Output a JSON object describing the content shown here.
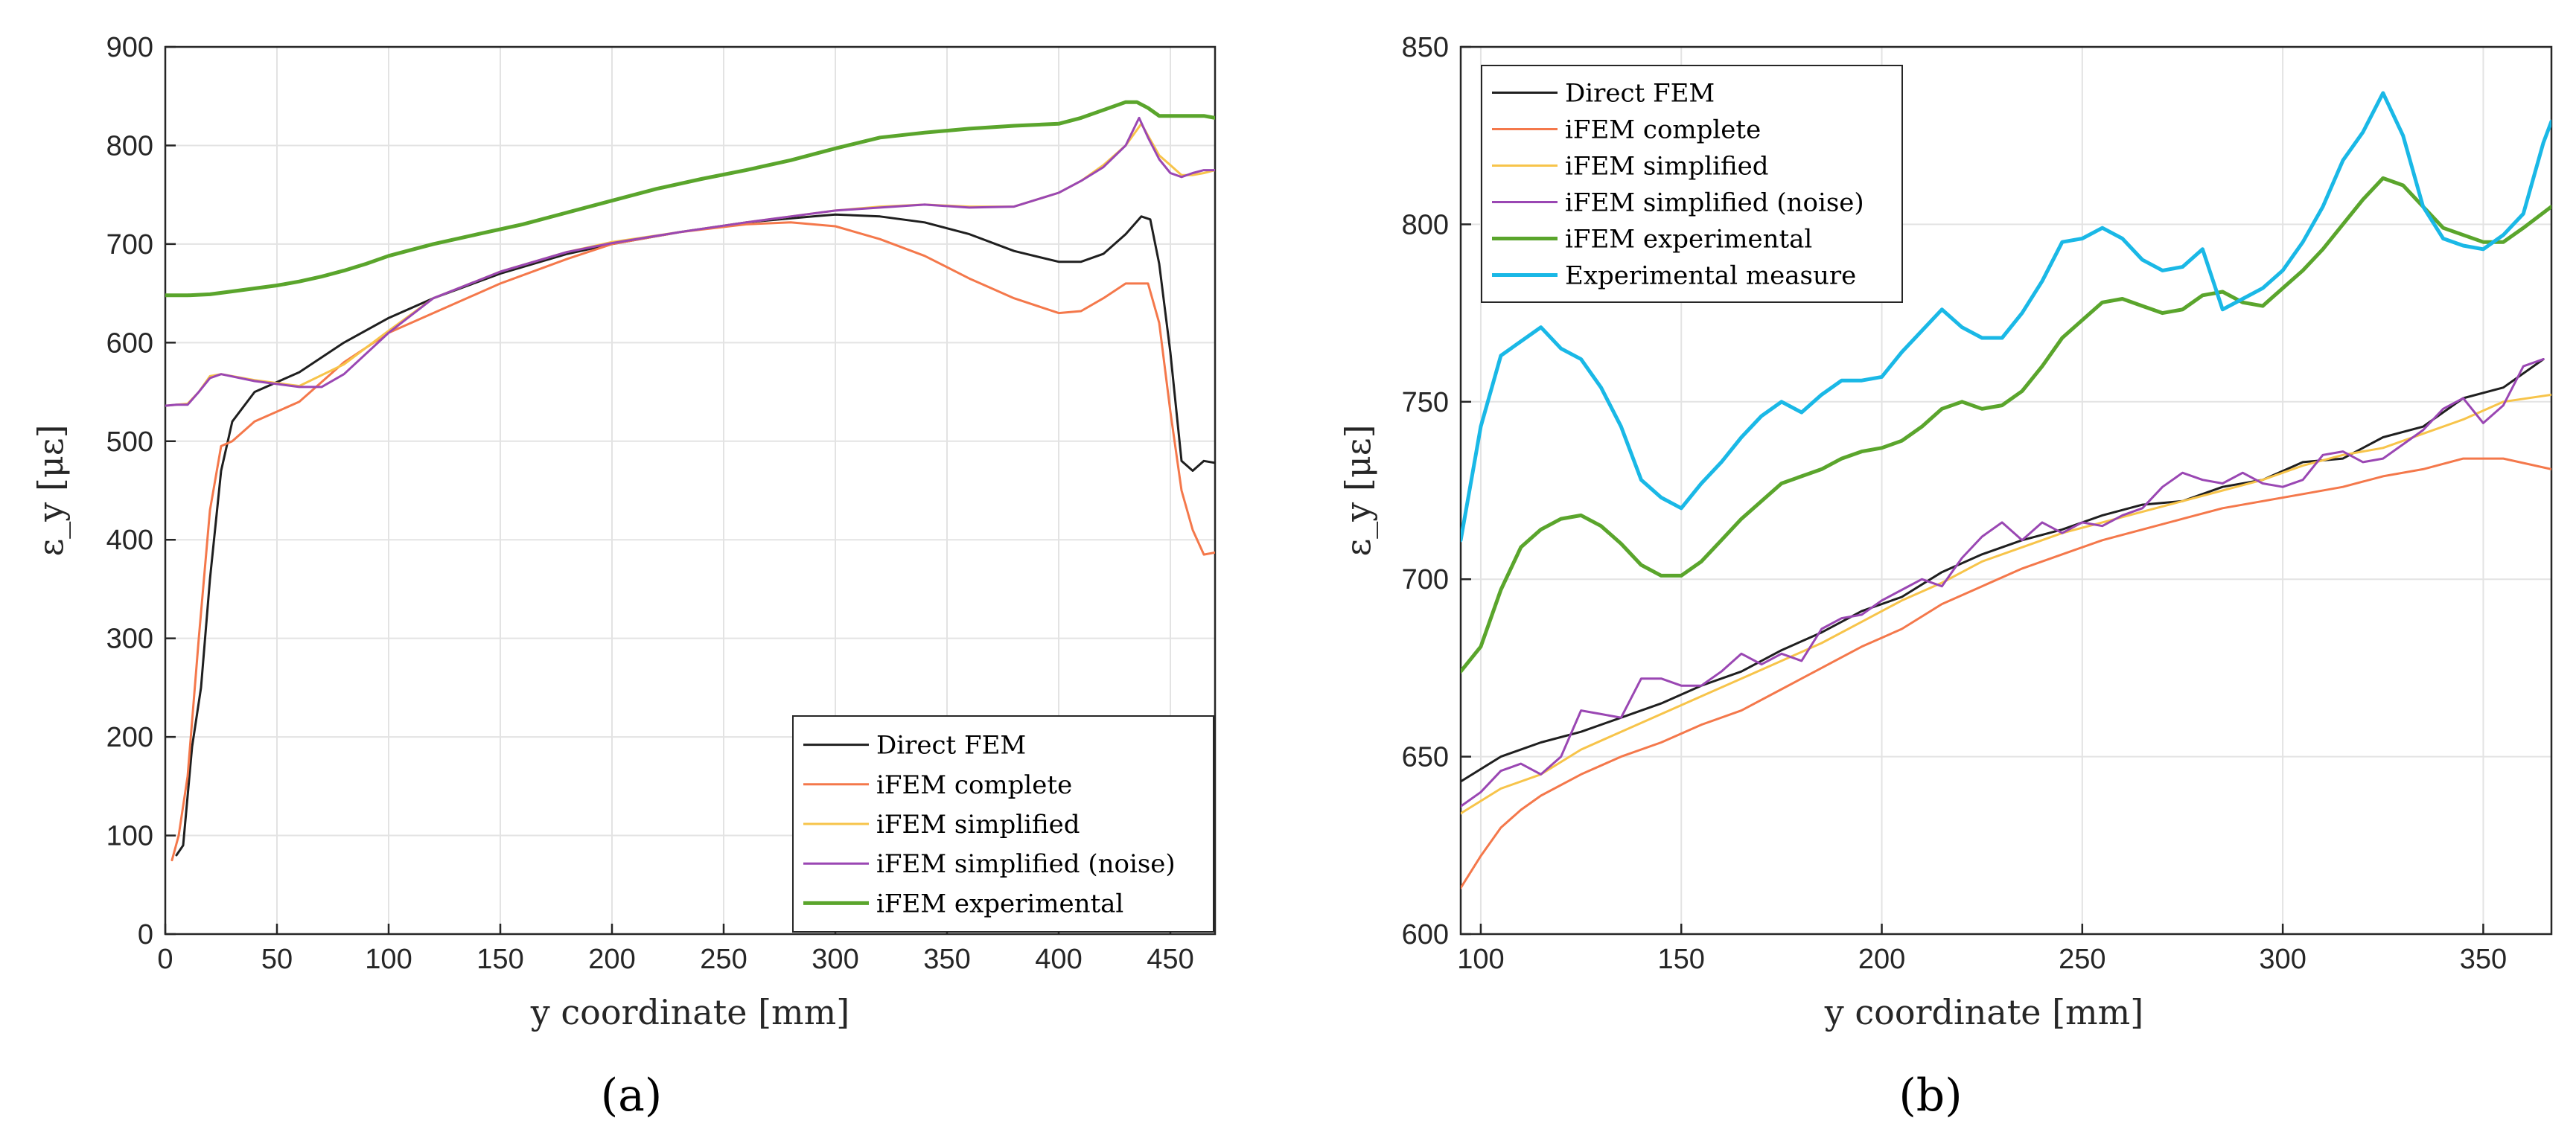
{
  "chart_data": [
    {
      "type": "line",
      "panel_label": "(a)",
      "xlabel": "y coordinate [mm]",
      "ylabel": "ε_y [με]",
      "xlim": [
        0,
        470
      ],
      "ylim": [
        0,
        900
      ],
      "xticks": [
        0,
        50,
        100,
        150,
        200,
        250,
        300,
        350,
        400,
        450
      ],
      "yticks": [
        0,
        100,
        200,
        300,
        400,
        500,
        600,
        700,
        800,
        900
      ],
      "grid": true,
      "legend_position": "bottom-right",
      "series": [
        {
          "name": "Direct FEM",
          "color": "#1f1f1f",
          "width": 3,
          "x": [
            5,
            8,
            12,
            16,
            20,
            25,
            30,
            40,
            60,
            80,
            100,
            120,
            150,
            180,
            200,
            230,
            260,
            290,
            300,
            320,
            340,
            360,
            380,
            400,
            410,
            420,
            430,
            437,
            441,
            445,
            450,
            455,
            460,
            465,
            470
          ],
          "y": [
            80,
            90,
            190,
            250,
            360,
            470,
            520,
            550,
            570,
            600,
            625,
            645,
            670,
            690,
            700,
            712,
            722,
            728,
            730,
            728,
            722,
            710,
            693,
            682,
            682,
            690,
            710,
            728,
            725,
            680,
            590,
            480,
            470,
            480,
            478
          ]
        },
        {
          "name": "iFEM complete",
          "color": "#f4784b",
          "width": 3,
          "x": [
            3,
            6,
            10,
            15,
            20,
            25,
            30,
            40,
            60,
            80,
            100,
            120,
            150,
            180,
            200,
            230,
            260,
            280,
            300,
            320,
            340,
            360,
            380,
            400,
            410,
            420,
            430,
            440,
            445,
            450,
            455,
            460,
            465,
            470
          ],
          "y": [
            75,
            100,
            160,
            300,
            430,
            495,
            500,
            520,
            540,
            580,
            610,
            630,
            660,
            685,
            700,
            712,
            720,
            722,
            718,
            705,
            688,
            665,
            645,
            630,
            632,
            645,
            660,
            660,
            620,
            530,
            450,
            410,
            385,
            387
          ]
        },
        {
          "name": "iFEM simplified",
          "color": "#f7c44a",
          "width": 3,
          "x": [
            0,
            10,
            15,
            20,
            25,
            40,
            60,
            80,
            100,
            120,
            150,
            180,
            200,
            230,
            260,
            280,
            300,
            320,
            340,
            360,
            380,
            400,
            410,
            420,
            430,
            437,
            440,
            445,
            450,
            455,
            460,
            465,
            470
          ],
          "y": [
            536,
            538,
            550,
            566,
            568,
            562,
            556,
            578,
            612,
            645,
            672,
            692,
            702,
            712,
            722,
            728,
            734,
            738,
            740,
            738,
            738,
            752,
            764,
            780,
            800,
            822,
            810,
            790,
            780,
            770,
            770,
            772,
            775
          ]
        },
        {
          "name": "iFEM simplified (noise)",
          "color": "#9a47b3",
          "width": 3,
          "x": [
            0,
            5,
            10,
            15,
            20,
            25,
            40,
            60,
            70,
            80,
            100,
            120,
            150,
            180,
            200,
            230,
            260,
            280,
            300,
            320,
            340,
            360,
            380,
            400,
            410,
            420,
            430,
            436,
            440,
            445,
            450,
            455,
            460,
            465,
            470
          ],
          "y": [
            536,
            537,
            537,
            550,
            564,
            568,
            561,
            555,
            555,
            568,
            610,
            645,
            672,
            692,
            701,
            712,
            722,
            728,
            734,
            737,
            740,
            737,
            738,
            752,
            764,
            778,
            800,
            828,
            808,
            786,
            772,
            768,
            772,
            775,
            775
          ]
        },
        {
          "name": "iFEM experimental",
          "color": "#5aa52c",
          "width": 5,
          "x": [
            0,
            10,
            20,
            30,
            40,
            50,
            60,
            70,
            80,
            90,
            100,
            110,
            120,
            140,
            160,
            180,
            200,
            220,
            240,
            260,
            280,
            300,
            320,
            340,
            360,
            380,
            400,
            410,
            420,
            430,
            435,
            440,
            445,
            450,
            455,
            460,
            465,
            470
          ],
          "y": [
            648,
            648,
            649,
            652,
            655,
            658,
            662,
            667,
            673,
            680,
            688,
            694,
            700,
            710,
            720,
            732,
            744,
            756,
            766,
            775,
            785,
            797,
            808,
            813,
            817,
            820,
            822,
            828,
            836,
            844,
            844,
            838,
            830,
            830,
            830,
            830,
            830,
            828
          ]
        }
      ]
    },
    {
      "type": "line",
      "panel_label": "(b)",
      "xlabel": "y coordinate [mm]",
      "ylabel": "ε_y [με]",
      "xlim": [
        95,
        367
      ],
      "ylim": [
        600,
        850
      ],
      "xticks": [
        100,
        150,
        200,
        250,
        300,
        350
      ],
      "yticks": [
        600,
        650,
        700,
        750,
        800,
        850
      ],
      "grid": true,
      "legend_position": "top-left",
      "series": [
        {
          "name": "Direct FEM",
          "color": "#1f1f1f",
          "width": 3,
          "x": [
            95,
            105,
            115,
            125,
            135,
            145,
            155,
            165,
            175,
            185,
            195,
            205,
            215,
            225,
            235,
            245,
            255,
            265,
            275,
            285,
            295,
            305,
            315,
            325,
            335,
            345,
            355,
            365
          ],
          "y": [
            643,
            650,
            654,
            657,
            661,
            665,
            670,
            674,
            680,
            685,
            691,
            695,
            702,
            707,
            711,
            714,
            718,
            721,
            722,
            726,
            728,
            733,
            734,
            740,
            743,
            751,
            754,
            762
          ]
        },
        {
          "name": "iFEM complete",
          "color": "#f4784b",
          "width": 3,
          "x": [
            95,
            100,
            105,
            110,
            115,
            125,
            135,
            145,
            155,
            165,
            175,
            185,
            195,
            205,
            215,
            225,
            235,
            245,
            255,
            265,
            275,
            285,
            295,
            305,
            315,
            325,
            335,
            345,
            355,
            367
          ],
          "y": [
            613,
            622,
            630,
            635,
            639,
            645,
            650,
            654,
            659,
            663,
            669,
            675,
            681,
            686,
            693,
            698,
            703,
            707,
            711,
            714,
            717,
            720,
            722,
            724,
            726,
            729,
            731,
            734,
            734,
            731
          ]
        },
        {
          "name": "iFEM simplified",
          "color": "#f7c44a",
          "width": 3,
          "x": [
            95,
            105,
            115,
            125,
            135,
            145,
            155,
            165,
            175,
            185,
            195,
            205,
            215,
            225,
            235,
            245,
            255,
            265,
            275,
            285,
            295,
            305,
            315,
            325,
            335,
            345,
            355,
            367
          ],
          "y": [
            634,
            641,
            645,
            652,
            657,
            662,
            667,
            672,
            677,
            682,
            688,
            694,
            699,
            705,
            709,
            713,
            716,
            719,
            722,
            725,
            728,
            732,
            735,
            737,
            741,
            745,
            750,
            752
          ]
        },
        {
          "name": "iFEM simplified (noise)",
          "color": "#9a47b3",
          "width": 3,
          "x": [
            95,
            100,
            105,
            110,
            115,
            120,
            125,
            130,
            135,
            140,
            145,
            150,
            155,
            160,
            165,
            170,
            175,
            180,
            185,
            190,
            195,
            200,
            205,
            210,
            215,
            220,
            225,
            230,
            235,
            240,
            245,
            250,
            255,
            260,
            265,
            270,
            275,
            280,
            285,
            290,
            295,
            300,
            305,
            310,
            315,
            320,
            325,
            330,
            335,
            340,
            345,
            350,
            355,
            360,
            365
          ],
          "y": [
            636,
            640,
            646,
            648,
            645,
            650,
            663,
            662,
            661,
            672,
            672,
            670,
            670,
            674,
            679,
            676,
            679,
            677,
            686,
            689,
            690,
            694,
            697,
            700,
            698,
            706,
            712,
            716,
            711,
            716,
            713,
            716,
            715,
            718,
            720,
            726,
            730,
            728,
            727,
            730,
            727,
            726,
            728,
            735,
            736,
            733,
            734,
            738,
            742,
            748,
            751,
            744,
            749,
            760,
            762
          ]
        },
        {
          "name": "iFEM experimental",
          "color": "#5aa52c",
          "width": 5,
          "x": [
            95,
            100,
            105,
            110,
            115,
            120,
            125,
            130,
            135,
            140,
            145,
            150,
            155,
            160,
            165,
            170,
            175,
            180,
            185,
            190,
            195,
            200,
            205,
            210,
            215,
            220,
            225,
            230,
            235,
            240,
            245,
            250,
            255,
            260,
            265,
            270,
            275,
            280,
            285,
            290,
            295,
            300,
            305,
            310,
            315,
            320,
            325,
            330,
            335,
            340,
            345,
            350,
            355,
            360,
            367
          ],
          "y": [
            674,
            681,
            697,
            709,
            714,
            717,
            718,
            715,
            710,
            704,
            701,
            701,
            705,
            711,
            717,
            722,
            727,
            729,
            731,
            734,
            736,
            737,
            739,
            743,
            748,
            750,
            748,
            749,
            753,
            760,
            768,
            773,
            778,
            779,
            777,
            775,
            776,
            780,
            781,
            778,
            777,
            782,
            787,
            793,
            800,
            807,
            813,
            811,
            805,
            799,
            797,
            795,
            795,
            799,
            805
          ]
        },
        {
          "name": "Experimental measure",
          "color": "#1ab8e6",
          "width": 5,
          "x": [
            95,
            100,
            105,
            110,
            115,
            120,
            125,
            130,
            135,
            140,
            145,
            150,
            155,
            160,
            165,
            170,
            175,
            180,
            185,
            190,
            195,
            200,
            205,
            210,
            215,
            220,
            225,
            230,
            235,
            240,
            245,
            250,
            255,
            260,
            265,
            270,
            275,
            280,
            285,
            290,
            295,
            300,
            305,
            310,
            315,
            320,
            325,
            330,
            335,
            340,
            345,
            350,
            355,
            360,
            365,
            367
          ],
          "y": [
            711,
            743,
            763,
            767,
            771,
            765,
            762,
            754,
            743,
            728,
            723,
            720,
            727,
            733,
            740,
            746,
            750,
            747,
            752,
            756,
            756,
            757,
            764,
            770,
            776,
            771,
            768,
            768,
            775,
            784,
            795,
            796,
            799,
            796,
            790,
            787,
            788,
            793,
            776,
            779,
            782,
            787,
            795,
            805,
            818,
            826,
            837,
            825,
            805,
            796,
            794,
            793,
            797,
            803,
            823,
            829
          ]
        }
      ]
    }
  ]
}
